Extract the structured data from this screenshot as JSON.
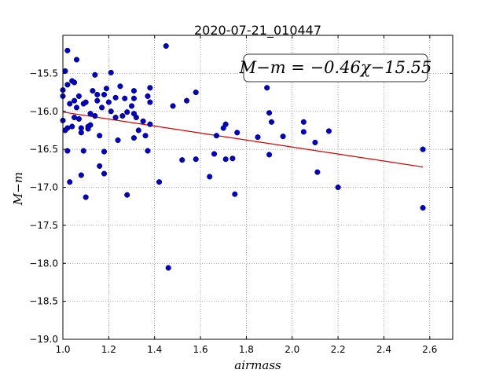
{
  "chart_data": {
    "type": "scatter",
    "title": "2020-07-21_010447",
    "xlabel": "airmass",
    "ylabel": "M−m",
    "xlim": [
      1.0,
      2.7
    ],
    "ylim": [
      -19.0,
      -15.0
    ],
    "y_inverted": false,
    "xticks": [
      "1.0",
      "1.2",
      "1.4",
      "1.6",
      "1.8",
      "2.0",
      "2.2",
      "2.4",
      "2.6"
    ],
    "yticks": [
      "−15.5",
      "−16.0",
      "−16.5",
      "−17.0",
      "−17.5",
      "−18.0",
      "−18.5",
      "−19.0"
    ],
    "grid": true,
    "annotation": "M−m = −0.46χ−15.55",
    "fit_line": {
      "slope": -0.46,
      "intercept": -15.55,
      "x_range": [
        1.0,
        2.57
      ],
      "color": "#d40000"
    },
    "marker_color": "#0000cc",
    "points": [
      [
        1.0,
        -15.72
      ],
      [
        1.0,
        -15.8
      ],
      [
        1.0,
        -16.12
      ],
      [
        1.01,
        -16.25
      ],
      [
        1.01,
        -15.47
      ],
      [
        1.02,
        -16.22
      ],
      [
        1.02,
        -15.65
      ],
      [
        1.02,
        -15.2
      ],
      [
        1.02,
        -16.52
      ],
      [
        1.03,
        -16.93
      ],
      [
        1.03,
        -15.9
      ],
      [
        1.04,
        -15.6
      ],
      [
        1.04,
        -16.2
      ],
      [
        1.05,
        -15.62
      ],
      [
        1.05,
        -15.86
      ],
      [
        1.05,
        -16.08
      ],
      [
        1.06,
        -15.32
      ],
      [
        1.06,
        -15.95
      ],
      [
        1.07,
        -15.8
      ],
      [
        1.07,
        -16.1
      ],
      [
        1.08,
        -16.22
      ],
      [
        1.08,
        -16.28
      ],
      [
        1.08,
        -16.84
      ],
      [
        1.09,
        -15.9
      ],
      [
        1.09,
        -16.52
      ],
      [
        1.1,
        -17.13
      ],
      [
        1.1,
        -15.88
      ],
      [
        1.11,
        -16.2
      ],
      [
        1.11,
        -16.23
      ],
      [
        1.12,
        -16.03
      ],
      [
        1.12,
        -16.18
      ],
      [
        1.13,
        -15.73
      ],
      [
        1.14,
        -15.52
      ],
      [
        1.14,
        -16.06
      ],
      [
        1.15,
        -15.86
      ],
      [
        1.15,
        -15.78
      ],
      [
        1.16,
        -16.72
      ],
      [
        1.16,
        -16.32
      ],
      [
        1.17,
        -15.95
      ],
      [
        1.18,
        -15.78
      ],
      [
        1.18,
        -16.82
      ],
      [
        1.18,
        -16.53
      ],
      [
        1.19,
        -15.7
      ],
      [
        1.2,
        -15.88
      ],
      [
        1.21,
        -15.49
      ],
      [
        1.21,
        -16.0
      ],
      [
        1.23,
        -16.08
      ],
      [
        1.23,
        -15.82
      ],
      [
        1.24,
        -16.38
      ],
      [
        1.25,
        -15.67
      ],
      [
        1.26,
        -16.06
      ],
      [
        1.27,
        -15.83
      ],
      [
        1.28,
        -16.01
      ],
      [
        1.28,
        -17.1
      ],
      [
        1.3,
        -15.93
      ],
      [
        1.31,
        -15.73
      ],
      [
        1.31,
        -15.83
      ],
      [
        1.31,
        -16.03
      ],
      [
        1.32,
        -16.08
      ],
      [
        1.31,
        -16.35
      ],
      [
        1.33,
        -16.25
      ],
      [
        1.35,
        -16.13
      ],
      [
        1.36,
        -16.32
      ],
      [
        1.37,
        -16.52
      ],
      [
        1.37,
        -15.8
      ],
      [
        1.38,
        -15.69
      ],
      [
        1.38,
        -15.88
      ],
      [
        1.38,
        -16.17
      ],
      [
        1.42,
        -16.93
      ],
      [
        1.45,
        -15.14
      ],
      [
        1.46,
        -18.06
      ],
      [
        1.48,
        -15.93
      ],
      [
        1.52,
        -16.64
      ],
      [
        1.54,
        -15.86
      ],
      [
        1.58,
        -15.75
      ],
      [
        1.58,
        -16.63
      ],
      [
        1.64,
        -16.86
      ],
      [
        1.66,
        -16.56
      ],
      [
        1.67,
        -16.32
      ],
      [
        1.7,
        -16.22
      ],
      [
        1.71,
        -16.17
      ],
      [
        1.71,
        -16.63
      ],
      [
        1.74,
        -16.62
      ],
      [
        1.75,
        -17.09
      ],
      [
        1.76,
        -16.28
      ],
      [
        1.85,
        -16.34
      ],
      [
        1.89,
        -15.69
      ],
      [
        1.9,
        -16.02
      ],
      [
        1.9,
        -16.57
      ],
      [
        1.91,
        -16.14
      ],
      [
        1.96,
        -16.33
      ],
      [
        2.05,
        -16.14
      ],
      [
        2.05,
        -16.27
      ],
      [
        2.1,
        -16.41
      ],
      [
        2.11,
        -16.8
      ],
      [
        2.16,
        -16.26
      ],
      [
        2.2,
        -17.0
      ],
      [
        2.57,
        -16.5
      ],
      [
        2.57,
        -17.27
      ]
    ]
  }
}
